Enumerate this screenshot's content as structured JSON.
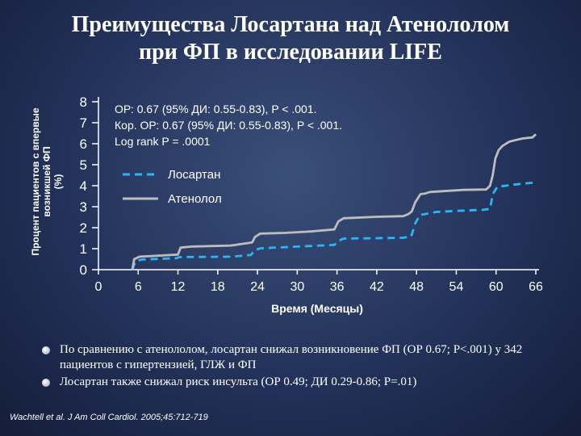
{
  "title": {
    "line1": "Преимущества Лосартана над Атенололом",
    "line2": "при ФП в исследовании LIFE"
  },
  "chart_data": {
    "type": "line",
    "title": "",
    "xlabel": "Время (Месяцы)",
    "ylabel_line1": "Процент пациентов с впервые",
    "ylabel_line2": "возникшей ФП",
    "ylabel_line3": "(%)",
    "xlim": [
      0,
      66
    ],
    "ylim": [
      0,
      8
    ],
    "x_ticks": [
      "0",
      "6",
      "12",
      "18",
      "24",
      "30",
      "36",
      "42",
      "48",
      "54",
      "60",
      "66"
    ],
    "y_ticks": [
      "0",
      "1",
      "2",
      "3",
      "4",
      "5",
      "6",
      "7",
      "8"
    ],
    "annotations": [
      "ОР: 0.67 (95% ДИ: 0.55-0.83), P < .001.",
      "Кор. ОР: 0.67 (95% ДИ: 0.55-0.83), P < .001.",
      "Log rank P = .0001"
    ],
    "legend_placement": "upper-left",
    "series": [
      {
        "name": "Лосартан",
        "color": "#29b6f6",
        "style": "dashed",
        "points": [
          [
            5.1,
            0.0
          ],
          [
            5.6,
            0.4
          ],
          [
            6.5,
            0.48
          ],
          [
            8,
            0.5
          ],
          [
            11.8,
            0.55
          ],
          [
            12.2,
            0.6
          ],
          [
            20,
            0.62
          ],
          [
            23,
            0.7
          ],
          [
            23.7,
            0.95
          ],
          [
            24.5,
            1.02
          ],
          [
            30,
            1.1
          ],
          [
            35.6,
            1.18
          ],
          [
            36.3,
            1.38
          ],
          [
            37,
            1.48
          ],
          [
            42,
            1.5
          ],
          [
            46,
            1.52
          ],
          [
            47.2,
            1.58
          ],
          [
            47.8,
            2.2
          ],
          [
            48.5,
            2.6
          ],
          [
            51,
            2.75
          ],
          [
            54,
            2.8
          ],
          [
            58,
            2.85
          ],
          [
            59.1,
            2.9
          ],
          [
            59.5,
            3.6
          ],
          [
            60.2,
            3.95
          ],
          [
            64,
            4.1
          ],
          [
            66,
            4.15
          ]
        ]
      },
      {
        "name": "Атенолол",
        "color": "#bdbdbd",
        "style": "solid",
        "points": [
          [
            5.1,
            0.0
          ],
          [
            5.4,
            0.5
          ],
          [
            6.2,
            0.62
          ],
          [
            8,
            0.65
          ],
          [
            12,
            0.72
          ],
          [
            12.4,
            1.05
          ],
          [
            14,
            1.1
          ],
          [
            20,
            1.15
          ],
          [
            23.2,
            1.3
          ],
          [
            23.6,
            1.55
          ],
          [
            24.4,
            1.72
          ],
          [
            28,
            1.75
          ],
          [
            32,
            1.82
          ],
          [
            35.6,
            1.92
          ],
          [
            36.2,
            2.3
          ],
          [
            37,
            2.45
          ],
          [
            42,
            2.52
          ],
          [
            46,
            2.55
          ],
          [
            46.8,
            2.65
          ],
          [
            47.3,
            2.78
          ],
          [
            47.8,
            3.2
          ],
          [
            48.6,
            3.6
          ],
          [
            49.2,
            3.62
          ],
          [
            50,
            3.7
          ],
          [
            55,
            3.8
          ],
          [
            58.5,
            3.82
          ],
          [
            59.1,
            4.0
          ],
          [
            59.5,
            4.5
          ],
          [
            59.9,
            5.3
          ],
          [
            60.4,
            5.7
          ],
          [
            61,
            5.9
          ],
          [
            62,
            6.1
          ],
          [
            64,
            6.25
          ],
          [
            65.5,
            6.3
          ],
          [
            66,
            6.45
          ]
        ]
      }
    ]
  },
  "bullets": [
    {
      "text": "По сравнению с атенололом, лосартан снижал возникновение ФП (ОР 0.67; P<.001) у 342 пациентов с гипертензией, ГЛЖ и ФП"
    },
    {
      "text": "Лосартан также снижал риск инсульта (ОР 0.49; ДИ 0.29-0.86; P=.01)"
    }
  ],
  "citation": "Wachtell et al. J Am Coll Cardiol. 2005;45:712-719"
}
